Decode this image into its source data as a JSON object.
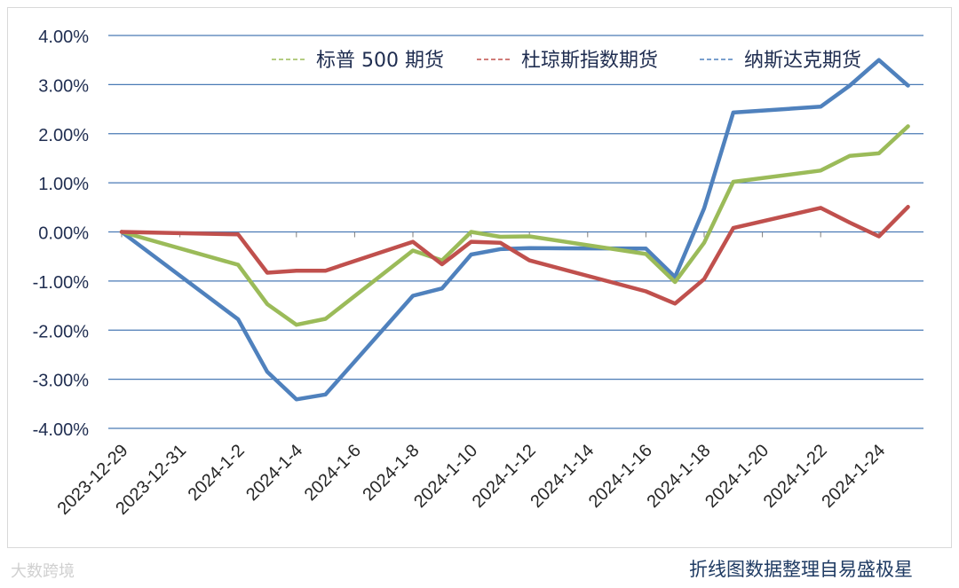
{
  "source_note": "折线图数据整理自易盛极星",
  "watermark": "大数跨境",
  "chart_data": {
    "type": "line",
    "title": "",
    "xlabel": "",
    "ylabel": "",
    "ylim": [
      -0.04,
      0.04
    ],
    "y_ticks": [
      0.04,
      0.03,
      0.02,
      0.01,
      0,
      -0.01,
      -0.02,
      -0.03,
      -0.04
    ],
    "y_tick_labels": [
      "4.00%",
      "3.00%",
      "2.00%",
      "1.00%",
      "0.00%",
      "-1.00%",
      "-2.00%",
      "-3.00%",
      "-4.00%"
    ],
    "x_tick_labels": [
      "2023-12-29",
      "2023-12-31",
      "2024-1-2",
      "2024-1-4",
      "2024-1-6",
      "2024-1-8",
      "2024-1-10",
      "2024-1-12",
      "2024-1-14",
      "2024-1-16",
      "2024-1-18",
      "2024-1-20",
      "2024-1-22",
      "2024-1-24"
    ],
    "x": [
      "2023-12-29",
      "2024-1-2",
      "2024-1-3",
      "2024-1-4",
      "2024-1-5",
      "2024-1-8",
      "2024-1-9",
      "2024-1-10",
      "2024-1-11",
      "2024-1-12",
      "2024-1-16",
      "2024-1-17",
      "2024-1-18",
      "2024-1-19",
      "2024-1-22",
      "2024-1-23",
      "2024-1-24",
      "2024-1-25"
    ],
    "grid": true,
    "legend_position": "top",
    "series": [
      {
        "name": "纳斯达克期货",
        "color": "#4f81bd",
        "values": [
          0,
          -0.0178,
          -0.0285,
          -0.0341,
          -0.0331,
          -0.013,
          -0.0115,
          -0.0046,
          -0.0035,
          -0.0033,
          -0.0034,
          -0.0092,
          0.0048,
          0.0243,
          0.0255,
          0.0298,
          0.035,
          0.0298
        ]
      },
      {
        "name": "标普 500 期货",
        "color": "#9bbb59",
        "values": [
          0,
          -0.0067,
          -0.0147,
          -0.0189,
          -0.0177,
          -0.0038,
          -0.0058,
          0,
          -0.001,
          -0.0009,
          -0.0045,
          -0.0102,
          -0.0022,
          0.0102,
          0.0125,
          0.0155,
          0.016,
          0.0215
        ]
      },
      {
        "name": "杜琼斯指数期货",
        "color": "#c0504d",
        "values": [
          0,
          -0.0005,
          -0.0083,
          -0.0079,
          -0.0079,
          -0.002,
          -0.0066,
          -0.002,
          -0.0022,
          -0.0058,
          -0.0121,
          -0.0146,
          -0.0096,
          0.0008,
          0.0049,
          0.0019,
          -0.0009,
          0.0051
        ]
      }
    ]
  }
}
